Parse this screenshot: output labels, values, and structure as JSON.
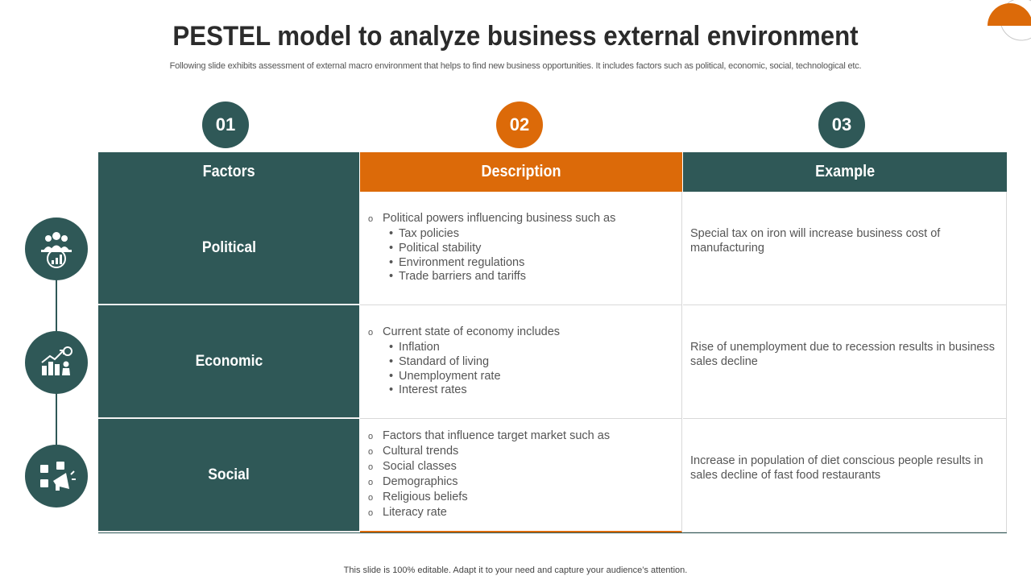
{
  "header": {
    "title": "PESTEL model to analyze business external environment",
    "subtitle": "Following slide exhibits assessment of external macro environment that helps to find new business opportunities. It includes factors such as political, economic, social, technological etc."
  },
  "steps": [
    "01",
    "02",
    "03"
  ],
  "colors": {
    "teal": "#2f5857",
    "orange": "#dc6a09"
  },
  "table": {
    "headers": {
      "factors": "Factors",
      "description": "Description",
      "example": "Example"
    },
    "rows": [
      {
        "factor": "Political",
        "icon": "people-chart-icon",
        "desc_lines": [
          {
            "type": "o",
            "text": "Political powers influencing business such as"
          },
          {
            "type": "dot",
            "text": "Tax policies"
          },
          {
            "type": "dot",
            "text": "Political stability"
          },
          {
            "type": "dot",
            "text": "Environment regulations"
          },
          {
            "type": "dot",
            "text": "Trade barriers and tariffs"
          }
        ],
        "example": "Special tax on iron will increase business cost of manufacturing"
      },
      {
        "factor": "Economic",
        "icon": "growth-chart-icon",
        "desc_lines": [
          {
            "type": "o",
            "text": "Current state of economy includes"
          },
          {
            "type": "dot",
            "text": "Inflation"
          },
          {
            "type": "dot",
            "text": "Standard of living"
          },
          {
            "type": "dot",
            "text": "Unemployment rate"
          },
          {
            "type": "dot",
            "text": "Interest rates"
          }
        ],
        "example": "Rise of unemployment due to recession results in business sales decline"
      },
      {
        "factor": "Social",
        "icon": "social-media-megaphone-icon",
        "desc_lines": [
          {
            "type": "o",
            "text": "Factors that influence target market such as"
          },
          {
            "type": "o",
            "text": "Cultural trends"
          },
          {
            "type": "o",
            "text": "Social classes"
          },
          {
            "type": "o",
            "text": "Demographics"
          },
          {
            "type": "o",
            "text": "Religious beliefs"
          },
          {
            "type": "o",
            "text": "Literacy rate"
          }
        ],
        "example": "Increase in population of diet conscious people results in sales decline of fast food restaurants"
      }
    ]
  },
  "footer": "This slide is 100% editable. Adapt it to your need and capture your audience’s attention."
}
